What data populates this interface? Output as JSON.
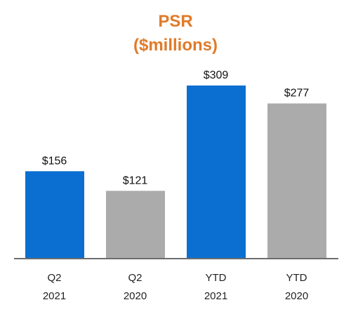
{
  "chart_data": {
    "type": "bar",
    "title_lines": [
      "PSR",
      "($millions)"
    ],
    "categories": [
      {
        "line1": "Q2",
        "line2": "2021"
      },
      {
        "line1": "Q2",
        "line2": "2020"
      },
      {
        "line1": "YTD",
        "line2": "2021"
      },
      {
        "line1": "YTD",
        "line2": "2020"
      }
    ],
    "values": [
      156,
      121,
      309,
      277
    ],
    "value_labels": [
      "$156",
      "$121",
      "$309",
      "$277"
    ],
    "bar_colors": [
      "#0A6FD0",
      "#ABABAB",
      "#0A6FD0",
      "#ABABAB"
    ],
    "title_color": "#E07B2A",
    "ylim": [
      0,
      320
    ],
    "grid": false,
    "legend": "none"
  }
}
